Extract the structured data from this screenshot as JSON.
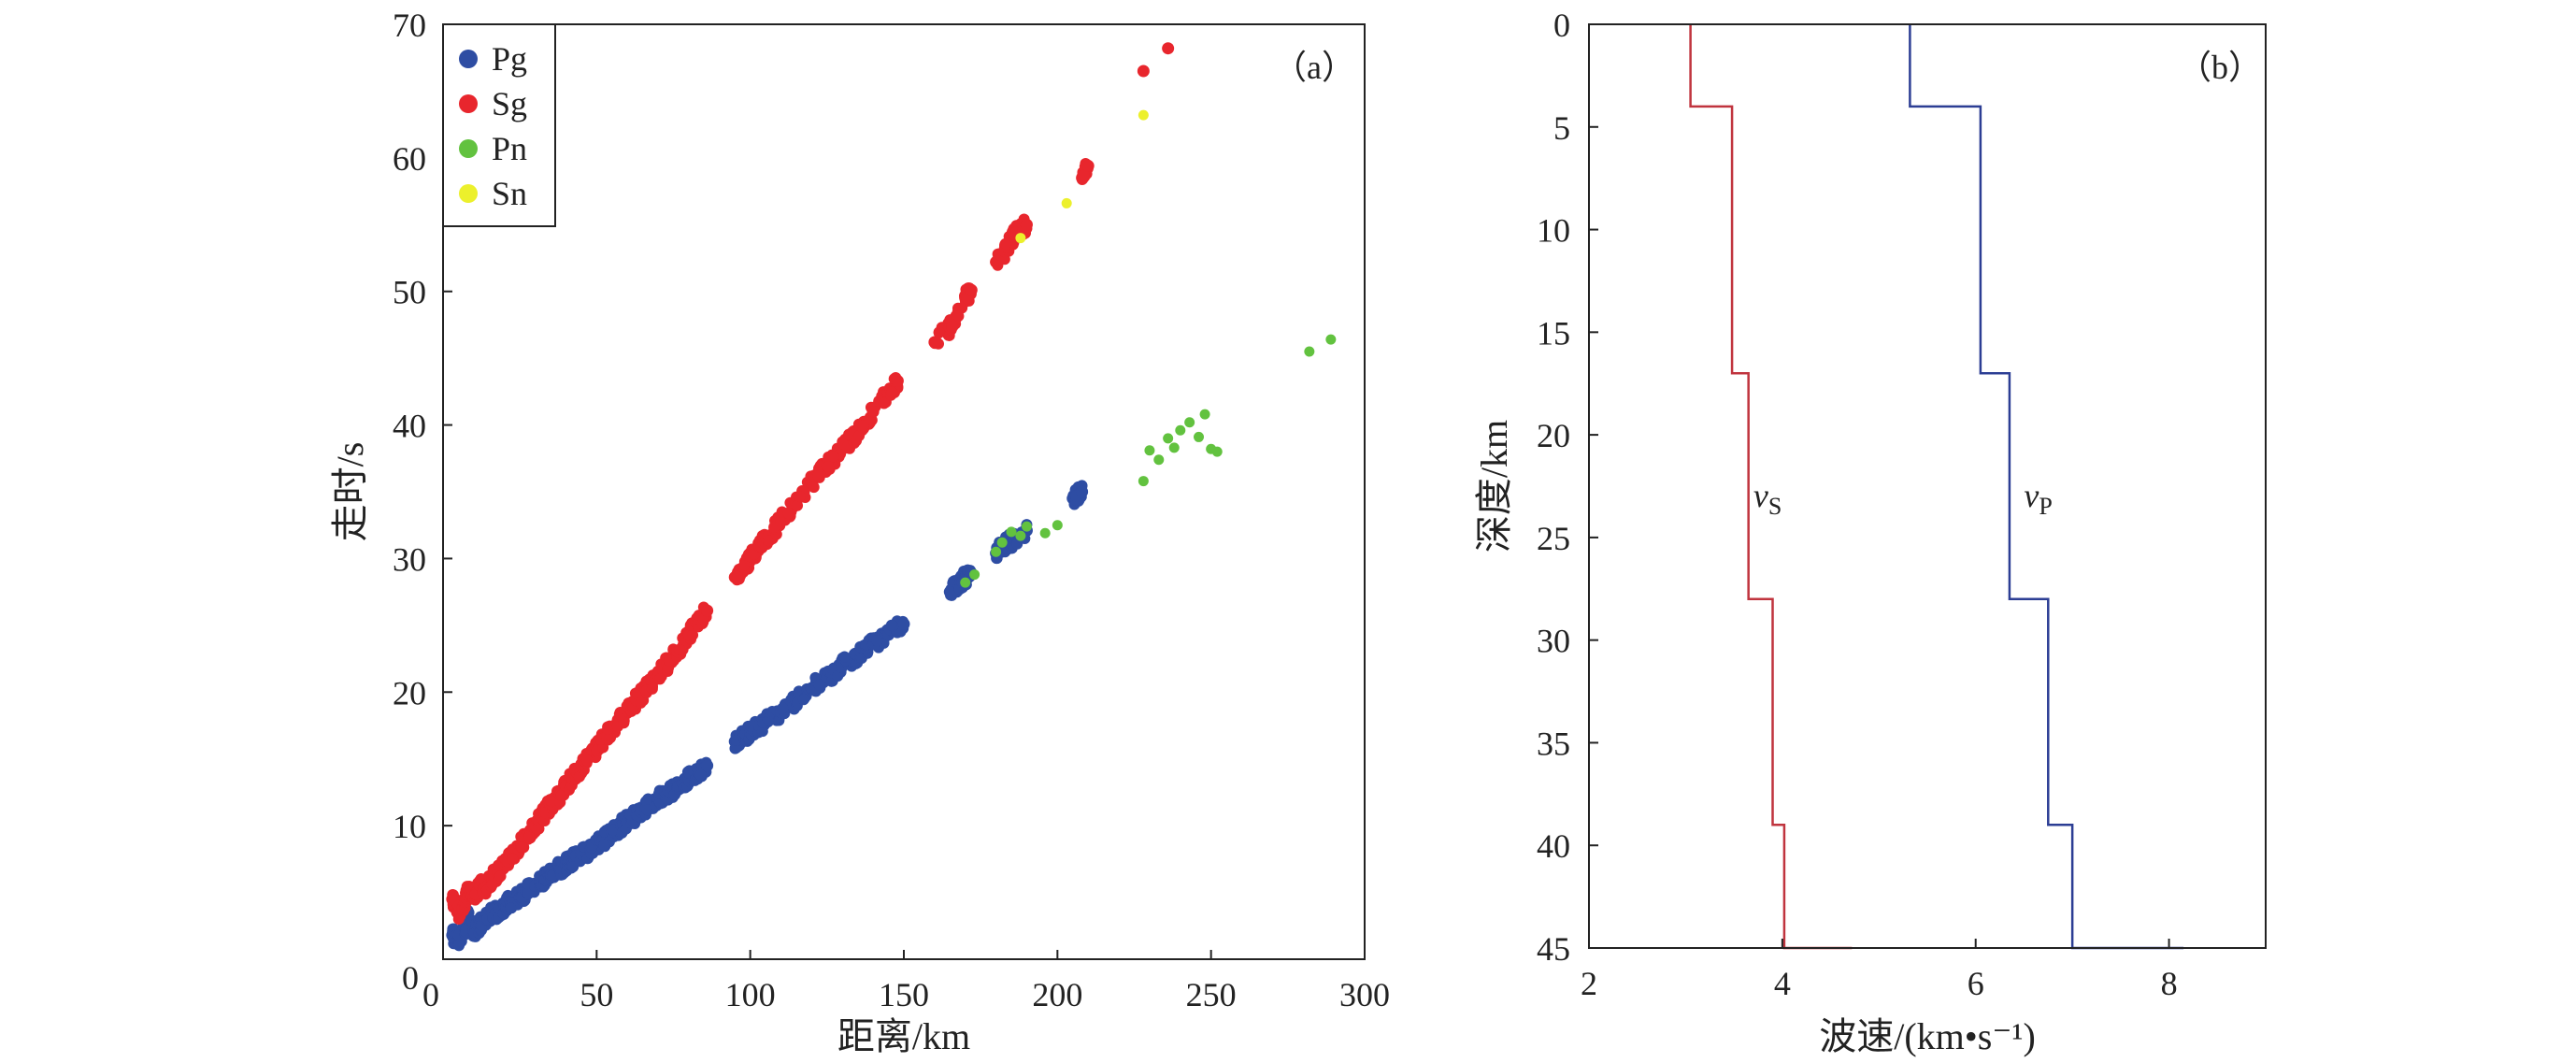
{
  "chart_data": [
    {
      "type": "scatter",
      "panel_label": "（a）",
      "xlabel": "距离/km",
      "ylabel": "走时/s",
      "xlim": [
        0,
        300
      ],
      "ylim": [
        0,
        70
      ],
      "xticks": [
        0,
        50,
        100,
        150,
        200,
        250,
        300
      ],
      "yticks": [
        0,
        10,
        20,
        30,
        40,
        50,
        60,
        70
      ],
      "grid": false,
      "legend_position": "top-left",
      "series": [
        {
          "name": "Pg",
          "color": "#2e4da3",
          "approx_relation": "travel time ≈ 0.4 + distance / 6.1 s (dense band of points)",
          "points": [
            [
              3,
              1.8
            ],
            [
              5,
              1.4
            ],
            [
              7,
              2.0
            ],
            [
              8,
              3.2
            ],
            [
              10,
              2.1
            ],
            [
              12,
              2.6
            ],
            [
              14,
              3.0
            ],
            [
              16,
              3.4
            ],
            [
              18,
              3.5
            ],
            [
              20,
              4.0
            ],
            [
              22,
              4.3
            ],
            [
              25,
              4.6
            ],
            [
              27,
              5.1
            ],
            [
              30,
              5.5
            ],
            [
              33,
              6.0
            ],
            [
              35,
              6.3
            ],
            [
              38,
              6.8
            ],
            [
              40,
              7.1
            ],
            [
              42,
              7.4
            ],
            [
              45,
              7.9
            ],
            [
              48,
              8.2
            ],
            [
              52,
              8.9
            ],
            [
              55,
              9.5
            ],
            [
              58,
              10.0
            ],
            [
              60,
              10.3
            ],
            [
              63,
              10.8
            ],
            [
              66,
              11.3
            ],
            [
              70,
              12.0
            ],
            [
              72,
              12.3
            ],
            [
              75,
              12.7
            ],
            [
              78,
              13.2
            ],
            [
              80,
              13.5
            ],
            [
              83,
              14.0
            ],
            [
              86,
              14.5
            ],
            [
              95,
              16.3
            ],
            [
              98,
              16.7
            ],
            [
              100,
              17.0
            ],
            [
              103,
              17.5
            ],
            [
              106,
              17.9
            ],
            [
              110,
              18.5
            ],
            [
              115,
              19.4
            ],
            [
              120,
              20.3
            ],
            [
              125,
              21.1
            ],
            [
              130,
              22.0
            ],
            [
              135,
              22.8
            ],
            [
              140,
              23.6
            ],
            [
              145,
              24.3
            ],
            [
              150,
              25.1
            ],
            [
              165,
              27.5
            ],
            [
              168,
              28.0
            ],
            [
              170,
              28.6
            ],
            [
              172,
              28.9
            ],
            [
              180,
              30.4
            ],
            [
              183,
              31.0
            ],
            [
              186,
              31.5
            ],
            [
              190,
              32.1
            ],
            [
              205,
              34.5
            ],
            [
              208,
              35.0
            ]
          ]
        },
        {
          "name": "Sg",
          "color": "#e8262d",
          "approx_relation": "travel time ≈ 1.5 + distance / 3.5 s (dense band of points)",
          "points": [
            [
              3,
              4.5
            ],
            [
              5,
              3.5
            ],
            [
              7,
              4.2
            ],
            [
              8,
              5.0
            ],
            [
              10,
              4.6
            ],
            [
              12,
              5.5
            ],
            [
              14,
              5.4
            ],
            [
              16,
              6.1
            ],
            [
              18,
              6.5
            ],
            [
              20,
              7.1
            ],
            [
              22,
              7.8
            ],
            [
              25,
              8.5
            ],
            [
              28,
              9.5
            ],
            [
              30,
              10.0
            ],
            [
              33,
              10.9
            ],
            [
              35,
              11.6
            ],
            [
              38,
              12.3
            ],
            [
              40,
              13.0
            ],
            [
              43,
              13.8
            ],
            [
              46,
              14.6
            ],
            [
              50,
              15.8
            ],
            [
              53,
              16.7
            ],
            [
              56,
              17.5
            ],
            [
              60,
              18.6
            ],
            [
              63,
              19.4
            ],
            [
              66,
              20.2
            ],
            [
              70,
              21.3
            ],
            [
              73,
              22.1
            ],
            [
              76,
              23.0
            ],
            [
              80,
              24.3
            ],
            [
              83,
              25.3
            ],
            [
              86,
              26.1
            ],
            [
              95,
              28.6
            ],
            [
              98,
              29.4
            ],
            [
              100,
              30.0
            ],
            [
              103,
              30.9
            ],
            [
              106,
              31.7
            ],
            [
              110,
              32.8
            ],
            [
              115,
              34.2
            ],
            [
              120,
              35.7
            ],
            [
              125,
              37.0
            ],
            [
              130,
              38.2
            ],
            [
              135,
              39.5
            ],
            [
              140,
              41.0
            ],
            [
              145,
              42.5
            ],
            [
              148,
              43.3
            ],
            [
              160,
              46.2
            ],
            [
              165,
              47.3
            ],
            [
              170,
              49.5
            ],
            [
              172,
              50.1
            ],
            [
              180,
              52.2
            ],
            [
              183,
              53.0
            ],
            [
              186,
              54.3
            ],
            [
              190,
              55.0
            ],
            [
              208,
              58.5
            ],
            [
              210,
              59.4
            ],
            [
              228,
              66.5
            ],
            [
              236,
              68.2
            ]
          ]
        },
        {
          "name": "Pn",
          "color": "#62c23f",
          "approx_relation": "travel time ≈ 7.3 + distance / 8.1 s",
          "points": [
            [
              170,
              28.2
            ],
            [
              173,
              28.8
            ],
            [
              180,
              30.5
            ],
            [
              182,
              31.2
            ],
            [
              185,
              32.0
            ],
            [
              188,
              31.7
            ],
            [
              190,
              32.4
            ],
            [
              196,
              31.9
            ],
            [
              200,
              32.5
            ],
            [
              228,
              35.8
            ],
            [
              230,
              38.1
            ],
            [
              233,
              37.4
            ],
            [
              236,
              39.0
            ],
            [
              238,
              38.3
            ],
            [
              240,
              39.6
            ],
            [
              243,
              40.2
            ],
            [
              246,
              39.1
            ],
            [
              248,
              40.8
            ],
            [
              250,
              38.2
            ],
            [
              252,
              38.0
            ],
            [
              282,
              45.5
            ],
            [
              289,
              46.4
            ]
          ]
        },
        {
          "name": "Sn",
          "color": "#ecf02c",
          "approx_relation": "sparse points",
          "points": [
            [
              188,
              54.0
            ],
            [
              203,
              56.6
            ],
            [
              228,
              63.2
            ]
          ]
        }
      ]
    },
    {
      "type": "line",
      "panel_label": "（b）",
      "xlabel": "波速/(km•s⁻¹)",
      "ylabel": "深度/km",
      "xlim": [
        2,
        9
      ],
      "ylim": [
        45,
        0
      ],
      "y_axis_inverted": true,
      "xticks": [
        2,
        4,
        6,
        8
      ],
      "yticks": [
        0,
        5,
        10,
        15,
        20,
        25,
        30,
        35,
        40,
        45
      ],
      "grid": false,
      "step_profile": true,
      "series": [
        {
          "name_main": "v",
          "name_sub": "S",
          "color": "#c0343e",
          "label_at": [
            3.7,
            23.5
          ],
          "layers": [
            {
              "top": 0,
              "bottom": 4,
              "velocity": 3.05
            },
            {
              "top": 4,
              "bottom": 17,
              "velocity": 3.48
            },
            {
              "top": 17,
              "bottom": 28,
              "velocity": 3.65
            },
            {
              "top": 28,
              "bottom": 39,
              "velocity": 3.9
            },
            {
              "top": 39,
              "bottom": 45,
              "velocity": 4.02
            },
            {
              "top": 45,
              "bottom": 45,
              "velocity": 4.72
            }
          ]
        },
        {
          "name_main": "v",
          "name_sub": "P",
          "color": "#2c3e94",
          "label_at": [
            6.5,
            23.5
          ],
          "layers": [
            {
              "top": 0,
              "bottom": 4,
              "velocity": 5.32
            },
            {
              "top": 4,
              "bottom": 17,
              "velocity": 6.05
            },
            {
              "top": 17,
              "bottom": 28,
              "velocity": 6.35
            },
            {
              "top": 28,
              "bottom": 39,
              "velocity": 6.75
            },
            {
              "top": 39,
              "bottom": 45,
              "velocity": 7.0
            },
            {
              "top": 45,
              "bottom": 45,
              "velocity": 8.15
            }
          ]
        }
      ]
    }
  ]
}
